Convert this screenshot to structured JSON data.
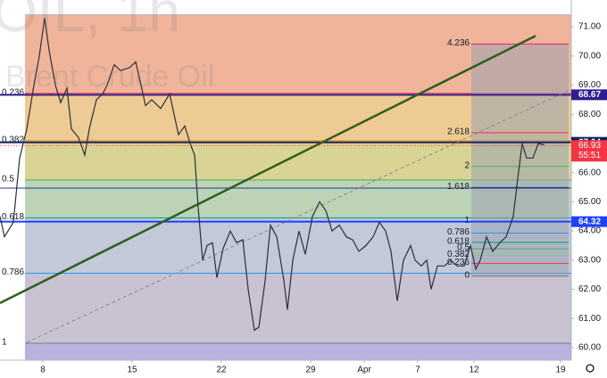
{
  "watermark": {
    "symbol": "OIL, 1h",
    "description": "Brent Crude Oil"
  },
  "chart_data": {
    "type": "line",
    "color": "#2a2e39",
    "x": [
      -2.4,
      -2.15,
      -1.65,
      -1.3,
      -0.9,
      -0.5,
      -0.2,
      0.1,
      0.35,
      0.7,
      1.0,
      1.35,
      1.6,
      2.0,
      2.35,
      2.6,
      3.0,
      3.35,
      3.6,
      4.0,
      4.35,
      4.85,
      5.2,
      5.5,
      5.75,
      6.1,
      6.6,
      7.1,
      7.35,
      7.6,
      7.95,
      8.25,
      8.5,
      8.7,
      8.95,
      9.2,
      9.5,
      9.75,
      10.1,
      10.5,
      10.85,
      11.2,
      11.5,
      11.85,
      12.1,
      12.45,
      12.75,
      13.1,
      13.5,
      13.7,
      14.0,
      14.35,
      14.7,
      15.1,
      15.5,
      15.85,
      16.2,
      16.6,
      17.0,
      17.35,
      17.7,
      18.1,
      18.5,
      18.85,
      19.2,
      19.5,
      19.85,
      20.2,
      20.6,
      20.85,
      21.2,
      21.5,
      21.75,
      22.1,
      22.5,
      22.85,
      23.2,
      23.6,
      23.95,
      24.25,
      24.5,
      24.85,
      25.2,
      25.6,
      25.95,
      26.35,
      26.6,
      26.85,
      27.1,
      27.45,
      27.75,
      28.1
    ],
    "values": [
      64.5,
      63.8,
      64.3,
      66.5,
      67.5,
      69.0,
      70.0,
      71.3,
      70.2,
      69.0,
      68.4,
      68.9,
      67.5,
      67.2,
      66.6,
      67.5,
      68.5,
      68.7,
      69.0,
      69.7,
      69.5,
      69.6,
      69.8,
      69.0,
      68.3,
      68.5,
      68.2,
      68.7,
      68.0,
      67.3,
      67.6,
      67.0,
      66.6,
      64.8,
      63.0,
      63.5,
      63.6,
      62.4,
      63.4,
      64.0,
      63.6,
      63.7,
      62.0,
      60.6,
      60.7,
      62.3,
      64.2,
      63.8,
      62.3,
      61.3,
      63.0,
      64.0,
      63.2,
      64.5,
      65.0,
      64.7,
      64.0,
      64.2,
      63.8,
      63.7,
      63.3,
      63.5,
      63.8,
      64.3,
      64.0,
      63.3,
      61.6,
      63.0,
      63.5,
      63.0,
      62.8,
      63.0,
      62.0,
      62.8,
      62.8,
      63.0,
      62.8,
      62.8,
      63.5,
      62.7,
      63.0,
      63.8,
      63.3,
      63.6,
      63.8,
      64.5,
      65.8,
      67.0,
      66.5,
      66.5,
      67.0,
      66.95
    ],
    "xlim": [
      -2.4,
      29.6
    ],
    "xticks": [
      {
        "value": 0,
        "label": "8"
      },
      {
        "value": 5,
        "label": "15"
      },
      {
        "value": 10,
        "label": "22"
      },
      {
        "value": 15,
        "label": "29"
      },
      {
        "value": 18,
        "label": "Apr"
      },
      {
        "value": 21,
        "label": "7"
      },
      {
        "value": 24.15,
        "label": "12"
      },
      {
        "value": 29,
        "label": "19"
      }
    ],
    "ylim": [
      59.57,
      71.92
    ],
    "yticks": [
      {
        "value": 60,
        "label": "60.00"
      },
      {
        "value": 61,
        "label": "61.00"
      },
      {
        "value": 62,
        "label": "62.00"
      },
      {
        "value": 63,
        "label": "63.00"
      },
      {
        "value": 64,
        "label": "64.00"
      },
      {
        "value": 65,
        "label": "65.00"
      },
      {
        "value": 66,
        "label": "66.00"
      },
      {
        "value": 67,
        "label": "67.00"
      },
      {
        "value": 68,
        "label": "68.00"
      },
      {
        "value": 69,
        "label": "69.00"
      },
      {
        "value": 70,
        "label": "70.00"
      },
      {
        "value": 71,
        "label": "71.00"
      }
    ],
    "fib_retracement": {
      "start": -1,
      "high": 71.4,
      "levels": [
        {
          "value": 68.72,
          "label": "0.236",
          "color": "#f23645",
          "fill": "#efb49a"
        },
        {
          "value": 67.1,
          "label": "0.382",
          "color": "#ff9800",
          "fill": "#eecb94"
        },
        {
          "value": 65.75,
          "label": "0.5",
          "color": "#4caf50",
          "fill": "#d9d496"
        },
        {
          "value": 64.45,
          "label": "0.618",
          "color": "#089981",
          "fill": "#bcd3b6"
        },
        {
          "value": 62.55,
          "label": "0.786",
          "color": "#2196f3",
          "fill": "#c2c9d9"
        },
        {
          "value": 60.15,
          "label": "1",
          "color": "#787b86",
          "fill": "#c8c2d3"
        }
      ],
      "below_fill": "#b9b2dd"
    },
    "fib_extension": {
      "start": 24,
      "end": 29.45,
      "fill": "#9aa3b0",
      "levels": [
        {
          "value": 62.45,
          "label": "0",
          "color": "#787b86"
        },
        {
          "value": 62.89,
          "label": "0.236",
          "color": "#f23645"
        },
        {
          "value": 63.16,
          "label": "0.382",
          "color": "#81c784"
        },
        {
          "value": 63.39,
          "label": "0.5",
          "color": "#4caf50"
        },
        {
          "value": 63.61,
          "label": "0.618",
          "color": "#089981"
        },
        {
          "value": 63.93,
          "label": "0.786",
          "color": "#2196f3"
        },
        {
          "value": 64.33,
          "label": "1",
          "color": "#787b86"
        },
        {
          "value": 65.49,
          "label": "1.618",
          "color": "#1a237e"
        },
        {
          "value": 66.21,
          "label": "2",
          "color": "#4caf50"
        },
        {
          "value": 67.37,
          "label": "2.618",
          "color": "#f23645"
        },
        {
          "value": 70.41,
          "label": "4.236",
          "color": "#e91e63"
        }
      ]
    },
    "price_lines": [
      {
        "value": 68.67,
        "color": "#311b92",
        "show_label": true
      },
      {
        "value": 67.04,
        "color": "#131c5e",
        "show_label": true
      },
      {
        "value": 64.32,
        "color": "#1e40ff",
        "show_label": true
      },
      {
        "value": 65.47,
        "color": "#283593",
        "show_label": false
      }
    ],
    "last_price": {
      "value": 66.93,
      "countdown": "55:51",
      "color": "#f23645"
    },
    "trend_lines": [
      {
        "x": [
          -2.4,
          27.6
        ],
        "y": [
          61.53,
          70.69
        ],
        "color": "#2e5e1e",
        "dashed": false
      },
      {
        "x": [
          -0.9,
          29.6
        ],
        "y": [
          60.18,
          68.86
        ],
        "color": "#8a8a8a",
        "dashed": true
      }
    ]
  }
}
